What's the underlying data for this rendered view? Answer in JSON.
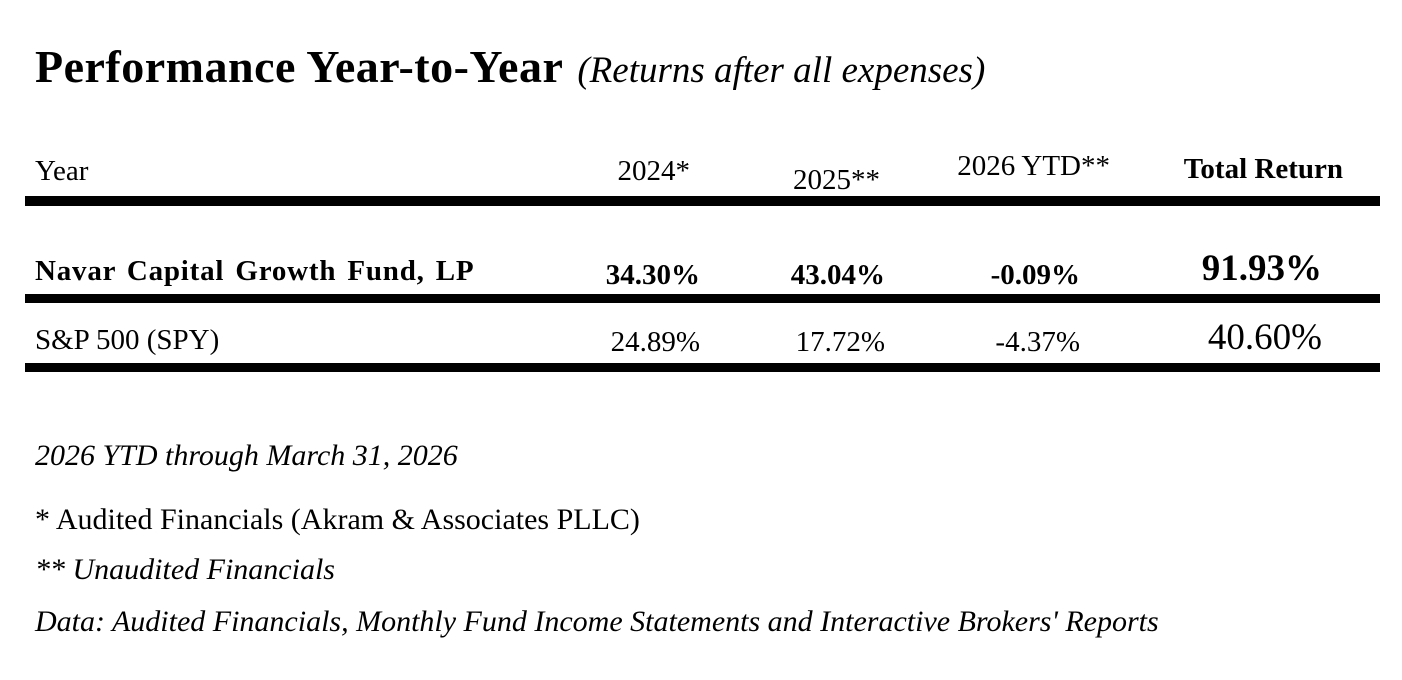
{
  "page": {
    "background_color": "#ffffff",
    "text_color": "#000000",
    "rule_color": "#000000"
  },
  "title": {
    "main": "Performance Year-to-Year",
    "subtitle": "(Returns after all expenses)"
  },
  "table": {
    "columns": [
      "Year",
      "2024*",
      "2025**",
      "2026 YTD**",
      "Total Return"
    ],
    "rows": [
      {
        "label": "Navar Capital Growth Fund, LP",
        "y2024": "34.30%",
        "y2025": "43.04%",
        "ytd2026": "-0.09%",
        "total": "91.93%"
      },
      {
        "label": "S&P 500 (SPY)",
        "y2024": "24.89%",
        "y2025": "17.72%",
        "ytd2026": "-4.37%",
        "total": "40.60%"
      }
    ]
  },
  "notes": {
    "ytd_note": "2026 YTD through March 31, 2026",
    "audited_note": "* Audited Financials (Akram & Associates PLLC)",
    "unaudited_note": "** Unaudited Financials",
    "data_note": "Data: Audited Financials, Monthly Fund Income Statements and Interactive Brokers' Reports"
  }
}
